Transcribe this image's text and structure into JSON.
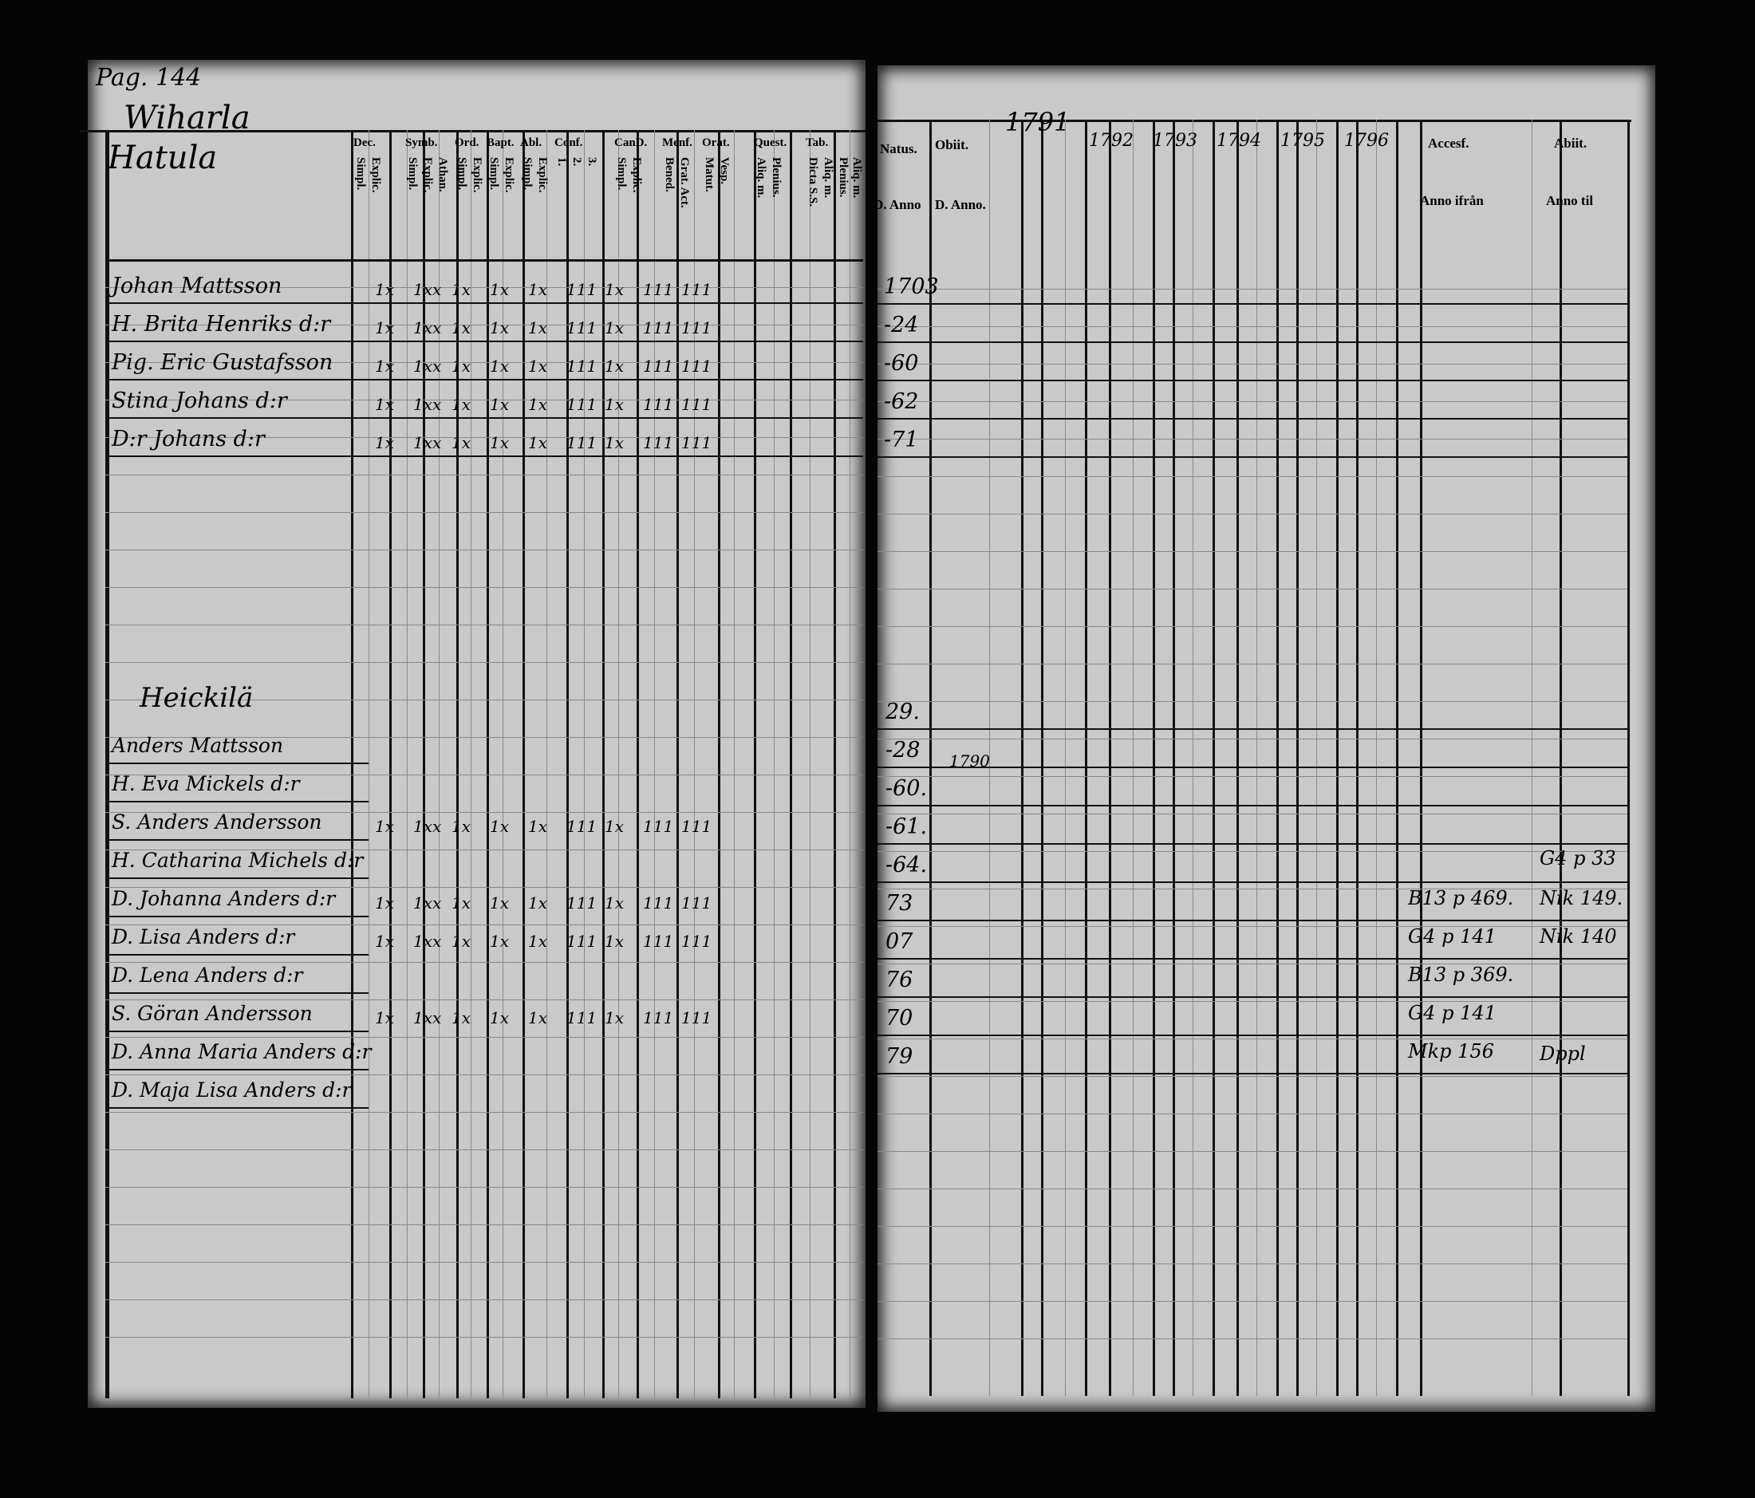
{
  "left_page": {
    "page_number": "Pag. 144",
    "village_1": [
      "Wiharla",
      "Hatula"
    ],
    "village_2": "Heickilä",
    "column_headers": [
      {
        "group": "Dec.",
        "subs": [
          "Simpl.",
          "Explic."
        ]
      },
      {
        "group": "Symb.",
        "subs": [
          "Simpl.",
          "Explic.",
          "Athan."
        ]
      },
      {
        "group": "Ord.",
        "subs": [
          "Simpl.",
          "Explic."
        ]
      },
      {
        "group": "Bapt.",
        "subs": [
          "Simpl.",
          "Explic."
        ]
      },
      {
        "group": "Abl.",
        "subs": [
          "Simpl.",
          "Explic."
        ]
      },
      {
        "group": "Conf.",
        "subs": [
          "1.",
          "2.",
          "3."
        ]
      },
      {
        "group": "CanD.",
        "subs": [
          "Simpl.",
          "Explic."
        ]
      },
      {
        "group": "Menf.",
        "subs": [
          "Bened.",
          "Grat. Act."
        ]
      },
      {
        "group": "Orat.",
        "subs": [
          "Matut.",
          "Vesp."
        ]
      },
      {
        "group": "Quest.",
        "subs": [
          "Aliq. m.",
          "Plenius."
        ]
      },
      {
        "group": "Tab.",
        "subs": [
          "Dicta S.S.",
          "Aliq. m.",
          "Plenius."
        ]
      },
      {
        "group": "",
        "subs": [
          "Aliq. m."
        ]
      }
    ],
    "section_1_people": [
      "Johan Mattsson",
      "H. Brita Henriks d:r",
      "Pig. Eric Gustafsson",
      "Stina Johans d:r",
      "D:r Johans d:r"
    ],
    "section_2_people": [
      "Anders Mattsson",
      "H. Eva Mickels d:r",
      "S. Anders Andersson",
      "H. Catharina Michels d:r",
      "D. Johanna Anders d:r",
      "D. Lisa Anders d:r",
      "D. Lena Anders d:r",
      "S. Göran Andersson",
      "D. Anna Maria Anders d:r",
      "D. Maja Lisa Anders d:r"
    ],
    "section_1_marks": [
      "1x",
      "1xx",
      "1x",
      "1x",
      "1x",
      "111",
      "1x",
      "111",
      "111"
    ],
    "section_2_marks": [
      "1x",
      "1xx",
      "1x",
      "1x",
      "1x",
      "111",
      "1x",
      "111",
      "111"
    ]
  },
  "right_page": {
    "headers": {
      "natus": "Natus.",
      "natus_sub": "D. Anno",
      "obiit": "Obiit.",
      "obiit_sub": "D. Anno.",
      "accession": "Accesf.",
      "accession_sub": "Anno ifrån",
      "abiit": "Abiit.",
      "abiit_sub": "Anno til"
    },
    "years": [
      "1791",
      "1792",
      "1793",
      "1794",
      "1795",
      "1796"
    ],
    "section_1_natus": [
      "1703",
      "-24",
      "-60",
      "-62",
      "-71"
    ],
    "section_2_natus": [
      "29.",
      "-28",
      "-60.",
      "-61.",
      "-64.",
      "73",
      "07",
      "76",
      "70",
      "79"
    ],
    "section_2_obiit": "1790",
    "accession_notes": [
      "B13 p 469.",
      "G4 p 141",
      "B13 p 369.",
      "G4 p 141",
      "Mkp 156"
    ],
    "abiit_notes": [
      "G4 p 33",
      "Nik 149.",
      "Nik 140",
      "Dppl"
    ]
  }
}
